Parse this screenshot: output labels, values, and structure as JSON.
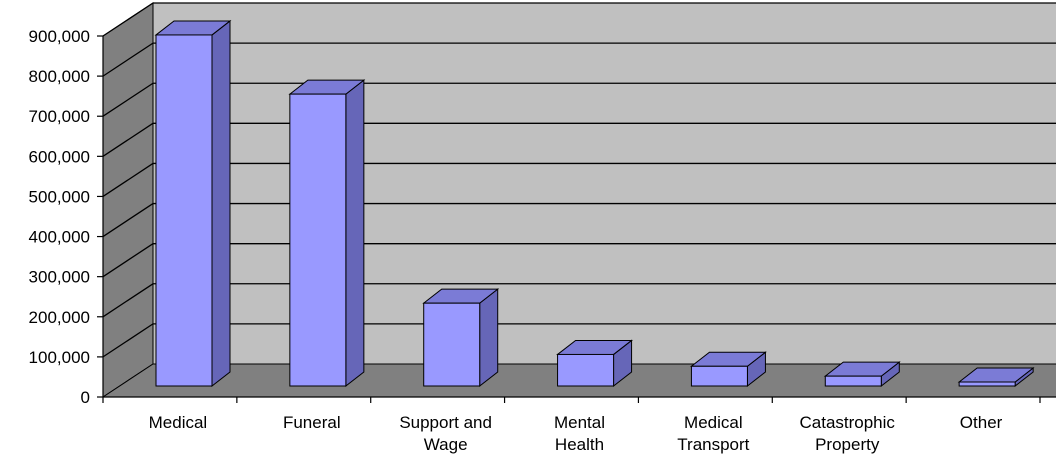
{
  "chart_data": {
    "type": "bar",
    "title": "",
    "xlabel": "",
    "ylabel": "",
    "ylim": [
      0,
      900000
    ],
    "y_ticks": [
      0,
      100000,
      200000,
      300000,
      400000,
      500000,
      600000,
      700000,
      800000,
      900000
    ],
    "y_tick_labels": [
      "0",
      "100,000",
      "200,000",
      "300,000",
      "400,000",
      "500,000",
      "600,000",
      "700,000",
      "800,000",
      "900,000"
    ],
    "categories": [
      [
        "Medical"
      ],
      [
        "Funeral"
      ],
      [
        "Support and",
        "Wage"
      ],
      [
        "Mental",
        "Health"
      ],
      [
        "Medical",
        "Transport"
      ],
      [
        "Catastrophic",
        "Property"
      ],
      [
        "Other"
      ]
    ],
    "values": [
      890000,
      740000,
      210000,
      80000,
      50000,
      25000,
      5000
    ],
    "grid": true,
    "style": "3d-column",
    "colors": {
      "bar_front": "#9999ff",
      "bar_top": "#7b7bd6",
      "bar_side": "#6666b8",
      "wall": "#c0c0c0",
      "side_wall": "#808080",
      "floor": "#808080"
    }
  }
}
